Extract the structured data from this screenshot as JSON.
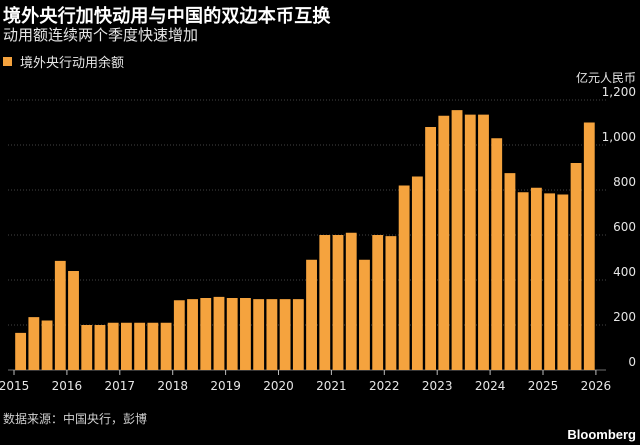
{
  "title": "境外央行加快动用与中国的双边本币互换",
  "subtitle": "动用额连续两个季度快速增加",
  "legend_label": "境外央行动用余额",
  "source": "数据来源：中国央行，彭博",
  "brand": "Bloomberg",
  "colors": {
    "bar": "#f5a33e",
    "grid": "#5a5a5a",
    "background": "#000000"
  },
  "chart_data": {
    "type": "bar",
    "title": "境外央行加快动用与中国的双边本币互换",
    "subtitle": "动用额连续两个季度快速增加",
    "unit": "亿元人民币",
    "ylim": [
      0,
      1200
    ],
    "yticks": [
      "0",
      "200",
      "400",
      "600",
      "800",
      "1,000",
      "1,200"
    ],
    "ytick_values": [
      0,
      200,
      400,
      600,
      800,
      1000,
      1200
    ],
    "xtick_labels": [
      "2015",
      "2016",
      "2017",
      "2018",
      "2019",
      "2020",
      "2021",
      "2022",
      "2023",
      "2024",
      "2025",
      "2026"
    ],
    "frequency": "quarterly",
    "legend": {
      "position": "top-left"
    },
    "series": [
      {
        "name": "境外央行动用余额",
        "x": [
          "2015Q1",
          "2015Q2",
          "2015Q3",
          "2015Q4",
          "2016Q1",
          "2016Q2",
          "2016Q3",
          "2016Q4",
          "2017Q1",
          "2017Q2",
          "2017Q3",
          "2017Q4",
          "2018Q1",
          "2018Q2",
          "2018Q3",
          "2018Q4",
          "2019Q1",
          "2019Q2",
          "2019Q3",
          "2019Q4",
          "2020Q1",
          "2020Q2",
          "2020Q3",
          "2020Q4",
          "2021Q1",
          "2021Q2",
          "2021Q3",
          "2021Q4",
          "2022Q1",
          "2022Q2",
          "2022Q3",
          "2022Q4",
          "2023Q1",
          "2023Q2",
          "2023Q3",
          "2023Q4",
          "2024Q1",
          "2024Q2",
          "2024Q3",
          "2024Q4",
          "2025Q1",
          "2025Q2",
          "2025Q3",
          "2025Q4"
        ],
        "values": [
          165,
          235,
          220,
          485,
          440,
          200,
          200,
          210,
          210,
          210,
          210,
          210,
          310,
          315,
          320,
          325,
          320,
          320,
          315,
          315,
          315,
          315,
          490,
          600,
          600,
          610,
          490,
          600,
          595,
          820,
          860,
          1080,
          1130,
          1155,
          1135,
          1135,
          1030,
          875,
          790,
          810,
          785,
          780,
          920,
          1100
        ]
      }
    ]
  }
}
